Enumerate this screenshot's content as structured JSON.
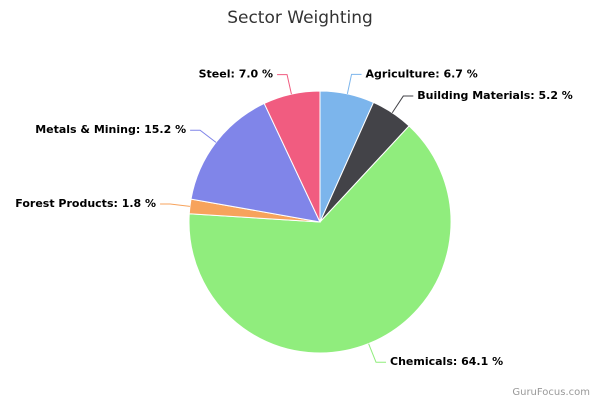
{
  "chart_data": {
    "type": "pie",
    "title": "Sector Weighting",
    "values": [
      6.7,
      5.2,
      64.1,
      1.8,
      15.2,
      7.0
    ],
    "value_labels": [
      "Agriculture: 6.7 %",
      "Building Materials: 5.2 %",
      "Chemicals: 64.1 %",
      "Forest Products: 1.8 %",
      "Metals & Mining: 15.2 %",
      "Steel: 7.0 %"
    ],
    "colors": [
      "#7cb5ec",
      "#434348",
      "#90ed7d",
      "#f7a35c",
      "#8085e9",
      "#f15c80"
    ],
    "credit": "GuruFocus.com"
  }
}
